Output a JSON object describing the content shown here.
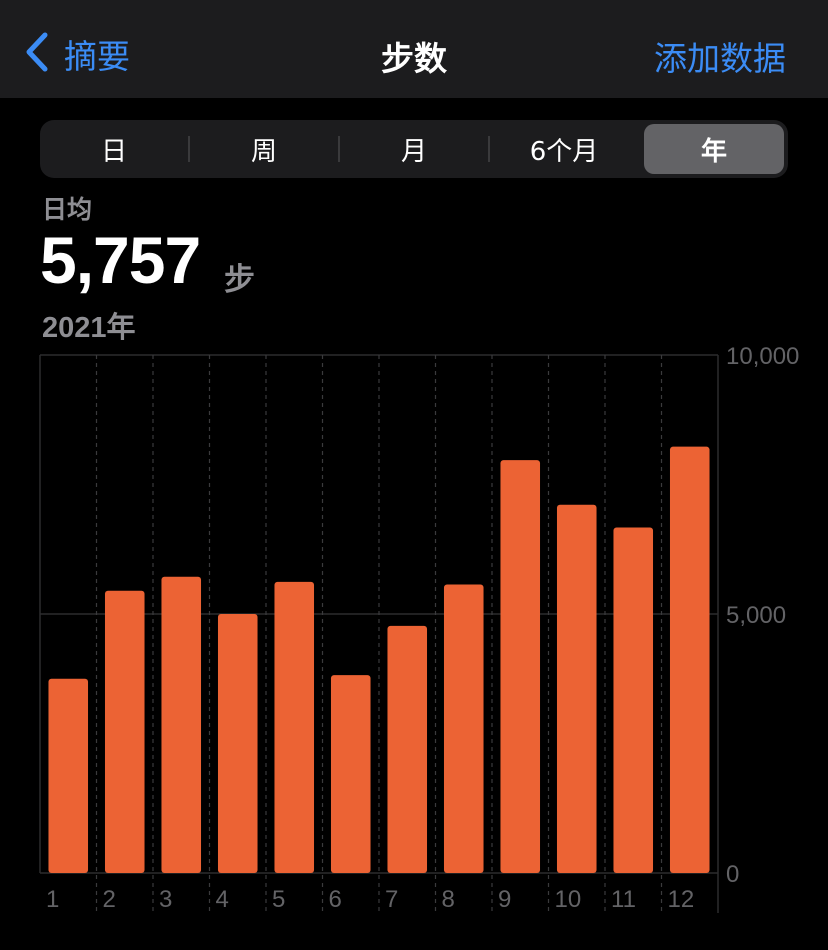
{
  "navbar": {
    "back_label": "摘要",
    "title": "步数",
    "action_label": "添加数据"
  },
  "segments": {
    "items": [
      "日",
      "周",
      "月",
      "6个月",
      "年"
    ],
    "selected": "年"
  },
  "stats": {
    "label": "日均",
    "value": "5,757",
    "unit": "步",
    "period": "2021年"
  },
  "colors": {
    "accent": "#3b8cf5",
    "bar": "#ec6334"
  },
  "chart_data": {
    "type": "bar",
    "categories": [
      "1",
      "2",
      "3",
      "4",
      "5",
      "6",
      "7",
      "8",
      "9",
      "10",
      "11",
      "12"
    ],
    "values": [
      3750,
      5450,
      5720,
      5000,
      5620,
      3820,
      4770,
      5570,
      7970,
      7110,
      6670,
      8230
    ],
    "ylim": [
      0,
      10000
    ],
    "yticks": [
      "0",
      "5,000",
      "10,000"
    ],
    "grid": true
  }
}
